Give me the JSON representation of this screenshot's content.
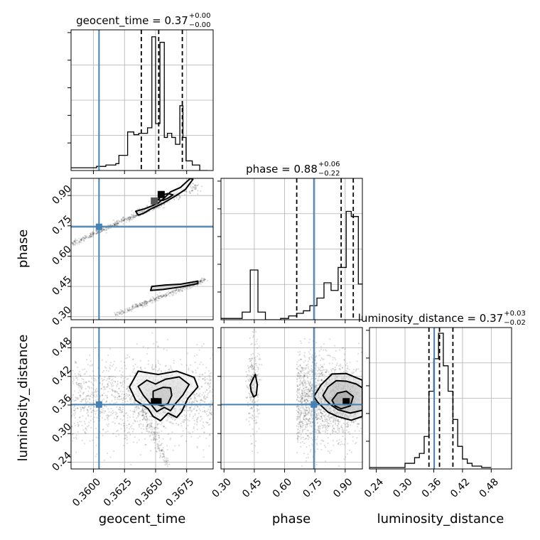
{
  "chart_data": {
    "type": "corner",
    "parameters": [
      "geocent_time",
      "phase",
      "luminosity_distance"
    ],
    "truth": {
      "geocent_time": 0.36045,
      "phase": 0.745,
      "luminosity_distance": 0.361
    },
    "truth_color": "#4682b4",
    "titles": {
      "geocent_time": {
        "main": "geocent_time = 0.37",
        "plus": "+0.00",
        "minus": "−0.00"
      },
      "phase": {
        "main": "phase = 0.88",
        "plus": "+0.06",
        "minus": "−0.22"
      },
      "luminosity_distance": {
        "main": "luminosity_distance = 0.37",
        "plus": "+0.03",
        "minus": "−0.02"
      }
    },
    "axis_labels": {
      "x": [
        "geocent_time",
        "phase",
        "luminosity_distance"
      ],
      "y": [
        "phase",
        "luminosity_distance"
      ]
    },
    "ticks": {
      "geocent_time": {
        "range": [
          0.3582,
          0.36963
        ],
        "values": [
          0.36,
          0.3625,
          0.365,
          0.3675
        ],
        "labels": [
          "0.3600",
          "0.3625",
          "0.3650",
          "0.3675"
        ]
      },
      "phase": {
        "range": [
          0.285,
          0.985
        ],
        "values": [
          0.3,
          0.45,
          0.6,
          0.75,
          0.9
        ],
        "labels": [
          "0.30",
          "0.45",
          "0.60",
          "0.75",
          "0.90"
        ]
      },
      "luminosity_distance": {
        "range": [
          0.2258,
          0.5225
        ],
        "values": [
          0.24,
          0.3,
          0.36,
          0.42,
          0.48
        ],
        "labels": [
          "0.24",
          "0.30",
          "0.36",
          "0.42",
          "0.48"
        ]
      }
    },
    "quantiles": {
      "geocent_time": [
        0.36385,
        0.36525,
        0.36715
      ],
      "phase": [
        0.66,
        0.88,
        0.94
      ],
      "luminosity_distance": [
        0.35,
        0.372,
        0.4
      ]
    },
    "histograms": {
      "geocent_time": {
        "edges": [
          0.3582,
          0.36025,
          0.361,
          0.3618,
          0.36205,
          0.36275,
          0.36325,
          0.36365,
          0.36435,
          0.3647,
          0.365,
          0.36535,
          0.3657,
          0.36595,
          0.3663,
          0.3666,
          0.36695,
          0.3672,
          0.36745,
          0.36795,
          0.36855,
          0.3692
        ],
        "counts": [
          0.02,
          0.03,
          0.04,
          0.05,
          0.11,
          0.28,
          0.26,
          0.27,
          0.31,
          0.97,
          0.34,
          0.93,
          0.24,
          0.27,
          0.24,
          0.19,
          0.47,
          0.24,
          0.07,
          0.04,
          0.0
        ]
      },
      "phase": {
        "edges": [
          0.285,
          0.39,
          0.43,
          0.468,
          0.505,
          0.58,
          0.62,
          0.66,
          0.693,
          0.725,
          0.76,
          0.795,
          0.83,
          0.865,
          0.905,
          0.93,
          0.965,
          0.985
        ],
        "counts": [
          0.01,
          0.06,
          0.39,
          0.06,
          0.0,
          0.01,
          0.03,
          0.05,
          0.07,
          0.11,
          0.17,
          0.29,
          0.23,
          0.41,
          0.85,
          0.81,
          0.28
        ]
      },
      "luminosity_distance": {
        "edges": [
          0.2258,
          0.3,
          0.32,
          0.33,
          0.34,
          0.35,
          0.36,
          0.37,
          0.38,
          0.39,
          0.4,
          0.41,
          0.42,
          0.43,
          0.44,
          0.46,
          0.48
        ],
        "counts": [
          0.01,
          0.04,
          0.08,
          0.11,
          0.23,
          0.55,
          0.78,
          0.96,
          0.73,
          0.55,
          0.35,
          0.16,
          0.07,
          0.04,
          0.02,
          0.01
        ]
      }
    },
    "contours": {
      "phase_vs_geocent_time": [
        [
          [
            0.3636,
            0.803
          ],
          [
            0.3634,
            0.822
          ],
          [
            0.3641,
            0.834
          ],
          [
            0.3646,
            0.846
          ],
          [
            0.3652,
            0.862
          ],
          [
            0.3657,
            0.888
          ],
          [
            0.3662,
            0.918
          ],
          [
            0.367,
            0.94
          ],
          [
            0.3678,
            0.985
          ],
          [
            0.368,
            0.98
          ],
          [
            0.3674,
            0.93
          ],
          [
            0.3666,
            0.898
          ],
          [
            0.3656,
            0.862
          ],
          [
            0.3646,
            0.833
          ],
          [
            0.364,
            0.811
          ]
        ],
        [
          [
            0.3652,
            0.878
          ],
          [
            0.3655,
            0.902
          ],
          [
            0.366,
            0.91
          ],
          [
            0.3664,
            0.903
          ],
          [
            0.366,
            0.887
          ],
          [
            0.3656,
            0.876
          ]
        ],
        [
          [
            0.3646,
            0.43
          ],
          [
            0.3647,
            0.45
          ],
          [
            0.3658,
            0.457
          ],
          [
            0.367,
            0.461
          ],
          [
            0.3684,
            0.476
          ],
          [
            0.3684,
            0.464
          ],
          [
            0.367,
            0.447
          ],
          [
            0.3656,
            0.435
          ]
        ]
      ],
      "luminosity_distance_vs_geocent_time": [
        [
          [
            0.3629,
            0.398
          ],
          [
            0.3636,
            0.431
          ],
          [
            0.3652,
            0.424
          ],
          [
            0.3667,
            0.431
          ],
          [
            0.3681,
            0.418
          ],
          [
            0.3684,
            0.398
          ],
          [
            0.3676,
            0.374
          ],
          [
            0.3671,
            0.346
          ],
          [
            0.3667,
            0.334
          ],
          [
            0.366,
            0.343
          ],
          [
            0.3654,
            0.327
          ],
          [
            0.3648,
            0.336
          ],
          [
            0.3644,
            0.352
          ],
          [
            0.3634,
            0.37
          ]
        ],
        [
          [
            0.3636,
            0.399
          ],
          [
            0.3643,
            0.412
          ],
          [
            0.365,
            0.404
          ],
          [
            0.3658,
            0.414
          ],
          [
            0.3669,
            0.419
          ],
          [
            0.3677,
            0.403
          ],
          [
            0.3672,
            0.381
          ],
          [
            0.3666,
            0.363
          ],
          [
            0.3662,
            0.348
          ],
          [
            0.3657,
            0.355
          ],
          [
            0.3651,
            0.346
          ],
          [
            0.3646,
            0.362
          ],
          [
            0.364,
            0.381
          ]
        ],
        [
          [
            0.3648,
            0.389
          ],
          [
            0.3656,
            0.397
          ],
          [
            0.3662,
            0.396
          ],
          [
            0.3663,
            0.38
          ],
          [
            0.366,
            0.363
          ],
          [
            0.3655,
            0.358
          ],
          [
            0.365,
            0.362
          ],
          [
            0.3648,
            0.376
          ]
        ]
      ],
      "luminosity_distance_vs_phase": [
        [
          [
            0.445,
            0.416
          ],
          [
            0.43,
            0.402
          ],
          [
            0.435,
            0.388
          ],
          [
            0.447,
            0.377
          ],
          [
            0.46,
            0.381
          ],
          [
            0.465,
            0.402
          ],
          [
            0.455,
            0.424
          ]
        ],
        [
          [
            0.745,
            0.378
          ],
          [
            0.78,
            0.402
          ],
          [
            0.835,
            0.425
          ],
          [
            0.905,
            0.426
          ],
          [
            0.985,
            0.412
          ],
          [
            0.985,
            0.336
          ],
          [
            0.93,
            0.328
          ],
          [
            0.86,
            0.336
          ],
          [
            0.815,
            0.345
          ],
          [
            0.765,
            0.365
          ]
        ],
        [
          [
            0.79,
            0.38
          ],
          [
            0.815,
            0.398
          ],
          [
            0.855,
            0.411
          ],
          [
            0.905,
            0.41
          ],
          [
            0.955,
            0.404
          ],
          [
            0.985,
            0.396
          ],
          [
            0.985,
            0.349
          ],
          [
            0.925,
            0.343
          ],
          [
            0.865,
            0.35
          ],
          [
            0.83,
            0.36
          ],
          [
            0.805,
            0.37
          ]
        ],
        [
          [
            0.835,
            0.37
          ],
          [
            0.862,
            0.385
          ],
          [
            0.905,
            0.389
          ],
          [
            0.94,
            0.378
          ],
          [
            0.925,
            0.358
          ],
          [
            0.88,
            0.352
          ],
          [
            0.85,
            0.358
          ]
        ]
      ]
    },
    "peaks": {
      "phase_vs_geocent_time": [
        [
          0.36545,
          0.905
        ],
        [
          0.3649,
          0.873
        ]
      ],
      "luminosity_distance_vs_geocent_time": [
        [
          0.3649,
          0.367
        ],
        [
          0.3652,
          0.367
        ]
      ],
      "luminosity_distance_vs_phase": [
        [
          0.905,
          0.367
        ]
      ]
    },
    "grid": true
  }
}
